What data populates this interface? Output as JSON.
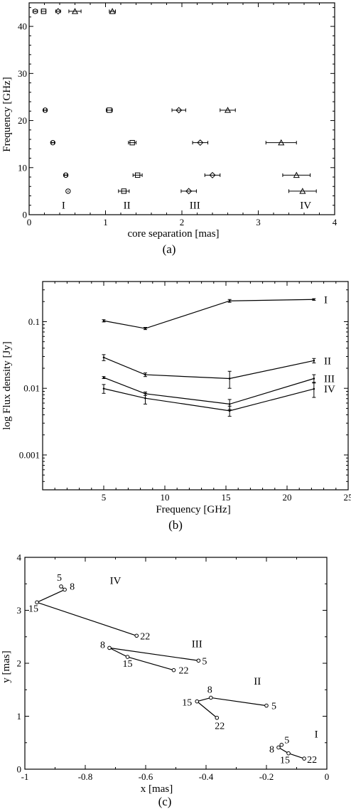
{
  "chart_data": [
    {
      "type": "scatter",
      "panel_label": "(a)",
      "xlabel": "core separation [mas]",
      "ylabel": "Frequency [GHz]",
      "xlim": [
        0,
        4
      ],
      "ylim": [
        0,
        45
      ],
      "xticks": [
        "0",
        "1",
        "2",
        "3",
        "4"
      ],
      "yticks": [
        "0",
        "10",
        "20",
        "30",
        "40"
      ],
      "grid": false,
      "series": [
        {
          "name": "I",
          "marker": "circle",
          "points": [
            {
              "x": 0.08,
              "y": 43.2,
              "xerr": 0.03
            },
            {
              "x": 0.21,
              "y": 22.2,
              "xerr": 0.02
            },
            {
              "x": 0.31,
              "y": 15.3,
              "xerr": 0.02
            },
            {
              "x": 0.48,
              "y": 8.4,
              "xerr": 0.02
            },
            {
              "x": 0.51,
              "y": 5.0,
              "xerr": 0.0
            }
          ]
        },
        {
          "name": "II",
          "marker": "square",
          "points": [
            {
              "x": 0.19,
              "y": 43.2,
              "xerr": 0.03
            },
            {
              "x": 1.05,
              "y": 22.2,
              "xerr": 0.04
            },
            {
              "x": 1.35,
              "y": 15.3,
              "xerr": 0.05
            },
            {
              "x": 1.42,
              "y": 8.4,
              "xerr": 0.06
            },
            {
              "x": 1.24,
              "y": 5.0,
              "xerr": 0.07
            }
          ]
        },
        {
          "name": "III",
          "marker": "diamond",
          "points": [
            {
              "x": 0.38,
              "y": 43.2,
              "xerr": 0.03
            },
            {
              "x": 1.96,
              "y": 22.2,
              "xerr": 0.09
            },
            {
              "x": 2.24,
              "y": 15.3,
              "xerr": 0.1
            },
            {
              "x": 2.4,
              "y": 8.4,
              "xerr": 0.1
            },
            {
              "x": 2.09,
              "y": 5.0,
              "xerr": 0.1
            }
          ]
        },
        {
          "name": "IV",
          "marker": "triangle",
          "points": [
            {
              "x": 0.6,
              "y": 43.2,
              "xerr": 0.08
            },
            {
              "x": 1.09,
              "y": 43.2,
              "xerr": 0.04
            },
            {
              "x": 2.6,
              "y": 22.2,
              "xerr": 0.1
            },
            {
              "x": 3.3,
              "y": 15.3,
              "xerr": 0.2
            },
            {
              "x": 3.5,
              "y": 8.4,
              "xerr": 0.18
            },
            {
              "x": 3.58,
              "y": 5.0,
              "xerr": 0.18
            }
          ]
        }
      ],
      "annotations": [
        {
          "text": "I",
          "x": 0.45,
          "y": 1.3
        },
        {
          "text": "II",
          "x": 1.28,
          "y": 1.3
        },
        {
          "text": "III",
          "x": 2.17,
          "y": 1.3
        },
        {
          "text": "IV",
          "x": 3.62,
          "y": 1.3
        }
      ]
    },
    {
      "type": "line",
      "panel_label": "(b)",
      "xlabel": "Frequency [GHz]",
      "ylabel": "log Flux density [Jy]",
      "xlim": [
        0,
        25
      ],
      "ylim": [
        0.0003,
        0.4
      ],
      "yscale": "log",
      "xticks": [
        "5",
        "10",
        "15",
        "20",
        "25"
      ],
      "yticks": [
        "0.001",
        "0.01",
        "0.1"
      ],
      "grid": false,
      "x": [
        5,
        8.4,
        15.3,
        22.2
      ],
      "series": [
        {
          "name": "I",
          "values": [
            0.103,
            0.079,
            0.205,
            0.215
          ],
          "errors": [
            0.004,
            0.003,
            0.01,
            0.006
          ]
        },
        {
          "name": "II",
          "values": [
            0.029,
            0.016,
            0.014,
            0.026
          ],
          "errors": [
            0.003,
            0.001,
            0.004,
            0.002
          ]
        },
        {
          "name": "III",
          "values": [
            0.0145,
            0.0083,
            0.0058,
            0.014
          ],
          "errors": [
            0.0005,
            0.0005,
            0.001,
            0.002
          ]
        },
        {
          "name": "IV",
          "values": [
            0.0099,
            0.0071,
            0.0046,
            0.0098
          ],
          "errors": [
            0.0015,
            0.0013,
            0.0008,
            0.0025
          ]
        }
      ]
    },
    {
      "type": "line",
      "panel_label": "(c)",
      "xlabel": "x [mas]",
      "ylabel": "y [mas]",
      "xlim": [
        -1,
        0
      ],
      "ylim": [
        0,
        4
      ],
      "xticks": [
        "-1",
        "-0.8",
        "-0.6",
        "-0.4",
        "-0.2",
        "0"
      ],
      "yticks": [
        "0",
        "1",
        "2",
        "3",
        "4"
      ],
      "grid": false,
      "series": [
        {
          "name": "I",
          "label_pos": [
            -0.035,
            0.6
          ],
          "points": [
            {
              "freq": "5",
              "x": -0.15,
              "y": 0.46
            },
            {
              "freq": "8",
              "x": -0.16,
              "y": 0.41
            },
            {
              "freq": "15",
              "x": -0.127,
              "y": 0.3
            },
            {
              "freq": "22",
              "x": -0.075,
              "y": 0.2
            }
          ]
        },
        {
          "name": "II",
          "label_pos": [
            -0.23,
            1.6
          ],
          "points": [
            {
              "freq": "5",
              "x": -0.2,
              "y": 1.2
            },
            {
              "freq": "8",
              "x": -0.384,
              "y": 1.35
            },
            {
              "freq": "15",
              "x": -0.43,
              "y": 1.28
            },
            {
              "freq": "22",
              "x": -0.364,
              "y": 0.97
            }
          ]
        },
        {
          "name": "III",
          "label_pos": [
            -0.43,
            2.3
          ],
          "points": [
            {
              "freq": "5",
              "x": -0.425,
              "y": 2.05
            },
            {
              "freq": "8",
              "x": -0.72,
              "y": 2.29
            },
            {
              "freq": "15",
              "x": -0.66,
              "y": 2.12
            },
            {
              "freq": "22",
              "x": -0.507,
              "y": 1.87
            }
          ]
        },
        {
          "name": "IV",
          "label_pos": [
            -0.7,
            3.5
          ],
          "points": [
            {
              "freq": "5",
              "x": -0.88,
              "y": 3.45
            },
            {
              "freq": "8",
              "x": -0.868,
              "y": 3.39
            },
            {
              "freq": "15",
              "x": -0.96,
              "y": 3.15
            },
            {
              "freq": "22",
              "x": -0.63,
              "y": 2.52
            }
          ]
        }
      ]
    }
  ]
}
